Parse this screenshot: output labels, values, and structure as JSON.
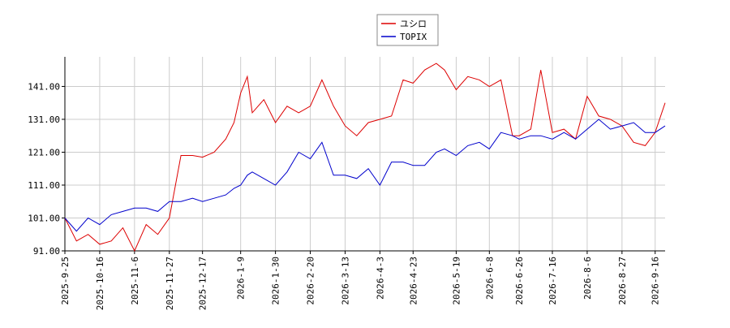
{
  "chart_data": {
    "type": "line",
    "x": [
      "2025-09-25",
      "2025-10-02",
      "2025-10-09",
      "2025-10-16",
      "2025-10-23",
      "2025-10-30",
      "2025-11-06",
      "2025-11-13",
      "2025-11-20",
      "2025-11-27",
      "2025-12-04",
      "2025-12-11",
      "2025-12-17",
      "2025-12-24",
      "2025-12-31",
      "2026-01-05",
      "2026-01-09",
      "2026-01-13",
      "2026-01-16",
      "2026-01-23",
      "2026-01-30",
      "2026-02-06",
      "2026-02-13",
      "2026-02-20",
      "2026-02-27",
      "2026-03-06",
      "2026-03-13",
      "2026-03-20",
      "2026-03-27",
      "2026-04-03",
      "2026-04-10",
      "2026-04-17",
      "2026-04-23",
      "2026-04-30",
      "2026-05-07",
      "2026-05-12",
      "2026-05-19",
      "2026-05-26",
      "2026-06-02",
      "2026-06-08",
      "2026-06-15",
      "2026-06-22",
      "2026-06-26",
      "2026-07-03",
      "2026-07-09",
      "2026-07-16",
      "2026-07-23",
      "2026-07-30",
      "2026-08-06",
      "2026-08-13",
      "2026-08-20",
      "2026-08-27",
      "2026-09-03",
      "2026-09-10",
      "2026-09-16",
      "2026-09-22"
    ],
    "series": [
      {
        "name": "ユシロ",
        "color": "#dd0000",
        "values": [
          101,
          94,
          96,
          93,
          94,
          98,
          91,
          99,
          96,
          101,
          120,
          120,
          119.5,
          121,
          125,
          130,
          139,
          144,
          133,
          137,
          130,
          135,
          133,
          135,
          143,
          135,
          129,
          126,
          130,
          131,
          132,
          143,
          142,
          146,
          148,
          146,
          140,
          144,
          143,
          141,
          143,
          126,
          126,
          128,
          146,
          127,
          128,
          125,
          138,
          132,
          131,
          129,
          124,
          123,
          127,
          136
        ]
      },
      {
        "name": "TOPIX",
        "color": "#0000cc",
        "values": [
          101,
          97,
          101,
          99,
          102,
          103,
          104,
          104,
          103,
          106,
          106,
          107,
          106,
          107,
          108,
          110,
          111,
          114,
          115,
          113,
          111,
          115,
          121,
          119,
          124,
          114,
          114,
          113,
          116,
          111,
          118,
          118,
          117,
          117,
          121,
          122,
          120,
          123,
          124,
          122,
          127,
          126,
          125,
          126,
          126,
          125,
          127,
          125,
          128,
          131,
          128,
          129,
          130,
          127,
          127,
          129
        ]
      }
    ],
    "xlim": [
      "2025-09-25",
      "2026-09-22"
    ],
    "xticks": [
      {
        "value": "2025-09-25",
        "label": "2025-9-25"
      },
      {
        "value": "2025-10-16",
        "label": "2025-10-16"
      },
      {
        "value": "2025-11-06",
        "label": "2025-11-6"
      },
      {
        "value": "2025-11-27",
        "label": "2025-11-27"
      },
      {
        "value": "2025-12-17",
        "label": "2025-12-17"
      },
      {
        "value": "2026-01-09",
        "label": "2026-1-9"
      },
      {
        "value": "2026-01-30",
        "label": "2026-1-30"
      },
      {
        "value": "2026-02-20",
        "label": "2026-2-20"
      },
      {
        "value": "2026-03-13",
        "label": "2026-3-13"
      },
      {
        "value": "2026-04-03",
        "label": "2026-4-3"
      },
      {
        "value": "2026-04-23",
        "label": "2026-4-23"
      },
      {
        "value": "2026-05-19",
        "label": "2026-5-19"
      },
      {
        "value": "2026-06-08",
        "label": "2026-6-8"
      },
      {
        "value": "2026-06-26",
        "label": "2026-6-26"
      },
      {
        "value": "2026-07-16",
        "label": "2026-7-16"
      },
      {
        "value": "2026-08-06",
        "label": "2026-8-6"
      },
      {
        "value": "2026-08-27",
        "label": "2026-8-27"
      },
      {
        "value": "2026-09-16",
        "label": "2026-9-16"
      }
    ],
    "ylim": [
      91,
      150
    ],
    "yticks": [
      {
        "value": 91,
        "label": "91.00"
      },
      {
        "value": 101,
        "label": "101.00"
      },
      {
        "value": 111,
        "label": "111.00"
      },
      {
        "value": 121,
        "label": "121.00"
      },
      {
        "value": 131,
        "label": "131.00"
      },
      {
        "value": 141,
        "label": "141.00"
      }
    ],
    "grid": true,
    "legend": "top"
  }
}
